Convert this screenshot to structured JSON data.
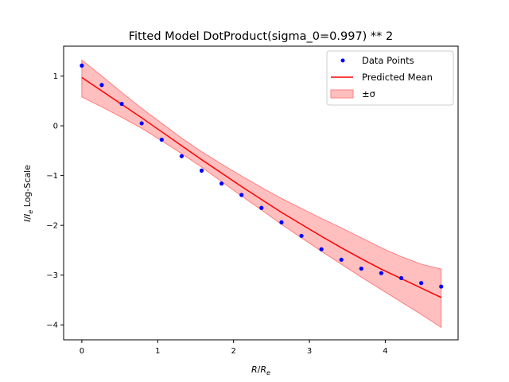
{
  "chart_data": {
    "type": "line",
    "title": "Fitted Model DotProduct(sigma_0=0.997) ** 2",
    "xlabel_main": "R",
    "xlabel_sub": "R",
    "xlabel_sub_e": "e",
    "ylabel_main": "I",
    "ylabel_sub_e": "e",
    "ylabel_suffix": " Log-Scale",
    "xlim": [
      -0.24,
      4.96
    ],
    "ylim": [
      -4.3,
      1.6
    ],
    "x_ticks": [
      0,
      1,
      2,
      3,
      4
    ],
    "x_tick_labels": [
      "0",
      "1",
      "2",
      "3",
      "4"
    ],
    "y_ticks": [
      1,
      0,
      -1,
      -2,
      -3,
      -4
    ],
    "y_tick_labels": [
      "1",
      "0",
      "−1",
      "−2",
      "−3",
      "−4"
    ],
    "grid": false,
    "legend_position": "top-right",
    "legend": {
      "data_points": "Data Points",
      "predicted_mean": "Predicted Mean",
      "sigma_band": "±σ"
    },
    "colors": {
      "points": "#0000ff",
      "mean": "#ff0000",
      "band_fill": "#ffbfbf",
      "band_edge": "#ff7f7f"
    },
    "series": [
      {
        "name": "Data Points",
        "kind": "scatter",
        "x": [
          0.0,
          0.263,
          0.526,
          0.789,
          1.053,
          1.316,
          1.579,
          1.842,
          2.105,
          2.368,
          2.632,
          2.895,
          3.158,
          3.421,
          3.684,
          3.947,
          4.211,
          4.474,
          4.737
        ],
        "y": [
          1.21,
          0.82,
          0.44,
          0.05,
          -0.28,
          -0.61,
          -0.9,
          -1.16,
          -1.39,
          -1.65,
          -1.94,
          -2.21,
          -2.48,
          -2.69,
          -2.87,
          -2.96,
          -3.06,
          -3.16,
          -3.23
        ]
      },
      {
        "name": "Predicted Mean",
        "kind": "line",
        "x": [
          0.0,
          0.263,
          0.526,
          0.789,
          1.053,
          1.316,
          1.579,
          1.842,
          2.105,
          2.368,
          2.632,
          2.895,
          3.158,
          3.421,
          3.684,
          3.947,
          4.211,
          4.474,
          4.737
        ],
        "y": [
          0.97,
          0.7,
          0.43,
          0.16,
          -0.12,
          -0.4,
          -0.68,
          -0.95,
          -1.22,
          -1.48,
          -1.74,
          -1.98,
          -2.22,
          -2.45,
          -2.67,
          -2.88,
          -3.07,
          -3.26,
          -3.45
        ]
      },
      {
        "name": "±σ",
        "kind": "band",
        "x": [
          0.0,
          0.263,
          0.526,
          0.789,
          1.053,
          1.316,
          1.579,
          1.842,
          2.105,
          2.368,
          2.632,
          2.895,
          3.158,
          3.421,
          3.684,
          3.947,
          4.211,
          4.474,
          4.737
        ],
        "upper": [
          1.32,
          1.0,
          0.67,
          0.35,
          0.05,
          -0.25,
          -0.52,
          -0.77,
          -1.01,
          -1.24,
          -1.46,
          -1.66,
          -1.86,
          -2.05,
          -2.25,
          -2.45,
          -2.63,
          -2.78,
          -2.88
        ],
        "lower": [
          0.58,
          0.38,
          0.17,
          -0.05,
          -0.3,
          -0.56,
          -0.83,
          -1.12,
          -1.41,
          -1.69,
          -1.98,
          -2.25,
          -2.52,
          -2.78,
          -3.04,
          -3.29,
          -3.54,
          -3.79,
          -4.05
        ]
      }
    ]
  }
}
